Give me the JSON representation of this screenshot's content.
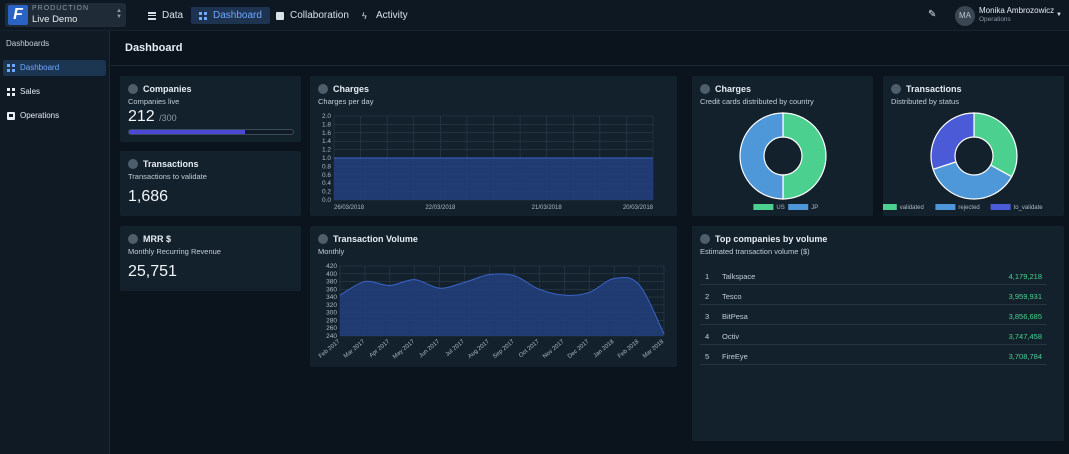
{
  "env": {
    "label": "PRODUCTION",
    "name": "Live Demo",
    "logo": "F"
  },
  "nav": [
    {
      "label": "Data",
      "icon": "list-icon"
    },
    {
      "label": "Dashboard",
      "icon": "dashboard-icon"
    },
    {
      "label": "Collaboration",
      "icon": "chat-icon"
    },
    {
      "label": "Activity",
      "icon": "bolt-icon"
    }
  ],
  "user": {
    "initials": "MA",
    "name": "Monika Ambrozowicz",
    "role": "Operations"
  },
  "sidebar": {
    "title": "Dashboards",
    "items": [
      {
        "label": "Dashboard"
      },
      {
        "label": "Sales"
      },
      {
        "label": "Operations"
      }
    ]
  },
  "page": {
    "title": "Dashboard"
  },
  "companies": {
    "title": "Companies",
    "subtitle": "Companies live",
    "value": "212",
    "total": "/300",
    "progress": 0.707
  },
  "transactions_validate": {
    "title": "Transactions",
    "subtitle": "Transactions to validate",
    "value": "1,686"
  },
  "mrr": {
    "title": "MRR $",
    "subtitle": "Monthly Recurring Revenue",
    "value": "25,751"
  },
  "charges_day": {
    "title": "Charges",
    "subtitle": "Charges per day"
  },
  "charges_country": {
    "title": "Charges",
    "subtitle": "Credit cards distributed by country"
  },
  "transactions_status": {
    "title": "Transactions",
    "subtitle": "Distributed by status"
  },
  "volume": {
    "title": "Transaction Volume",
    "subtitle": "Monthly"
  },
  "top": {
    "title": "Top companies by volume",
    "subtitle": "Estimated transaction volume ($)",
    "rows": [
      {
        "rank": "1",
        "name": "Talkspace",
        "value": "4,179,218"
      },
      {
        "rank": "2",
        "name": "Tesco",
        "value": "3,959,931"
      },
      {
        "rank": "3",
        "name": "BitPesa",
        "value": "3,856,685"
      },
      {
        "rank": "4",
        "name": "Octiv",
        "value": "3,747,458"
      },
      {
        "rank": "5",
        "name": "FireEye",
        "value": "3,708,784"
      }
    ]
  },
  "colors": {
    "accent": "#4b49d6",
    "area": "#233f7e",
    "line": "#3a64c8",
    "green": "#4bd08f",
    "blue": "#4e97d8",
    "indigo": "#4b5bd8"
  },
  "chart_data": [
    {
      "type": "area",
      "title": "Charges",
      "x": [
        "26/03/2018",
        "22/03/2018",
        "21/03/2018",
        "20/03/2018"
      ],
      "values": [
        1.0,
        1.0,
        1.0,
        1.0
      ],
      "ylim": [
        0,
        2.0
      ],
      "yticks": [
        "2.0",
        "1.8",
        "1.6",
        "1.4",
        "1.2",
        "1.0",
        "0.8",
        "0.6",
        "0.4",
        "0.2",
        "0.0"
      ],
      "grid": true
    },
    {
      "type": "pie",
      "title": "Charges",
      "labels": [
        "US",
        "JP"
      ],
      "values": [
        50,
        50
      ],
      "colors": [
        "#4bd08f",
        "#4e97d8"
      ],
      "legend": "bottom-right"
    },
    {
      "type": "pie",
      "title": "Transactions",
      "labels": [
        "validated",
        "rejected",
        "to_validate"
      ],
      "values": [
        33,
        37,
        30
      ],
      "colors": [
        "#4bd08f",
        "#4e97d8",
        "#4b5bd8"
      ],
      "legend": "bottom-right"
    },
    {
      "type": "area",
      "title": "Transaction Volume",
      "x": [
        "Feb 2017",
        "Mar 2017",
        "Apr 2017",
        "May 2017",
        "Jun 2017",
        "Jul 2017",
        "Aug 2017",
        "Sep 2017",
        "Oct 2017",
        "Nov 2017",
        "Dec 2017",
        "Jan 2018",
        "Feb 2018",
        "Mar 2018"
      ],
      "values": [
        345,
        380,
        370,
        385,
        363,
        378,
        398,
        395,
        360,
        345,
        352,
        388,
        372,
        245
      ],
      "ylim": [
        240,
        420
      ],
      "yticks": [
        "420",
        "400",
        "380",
        "360",
        "340",
        "320",
        "300",
        "280",
        "260",
        "240"
      ],
      "grid": true
    }
  ]
}
